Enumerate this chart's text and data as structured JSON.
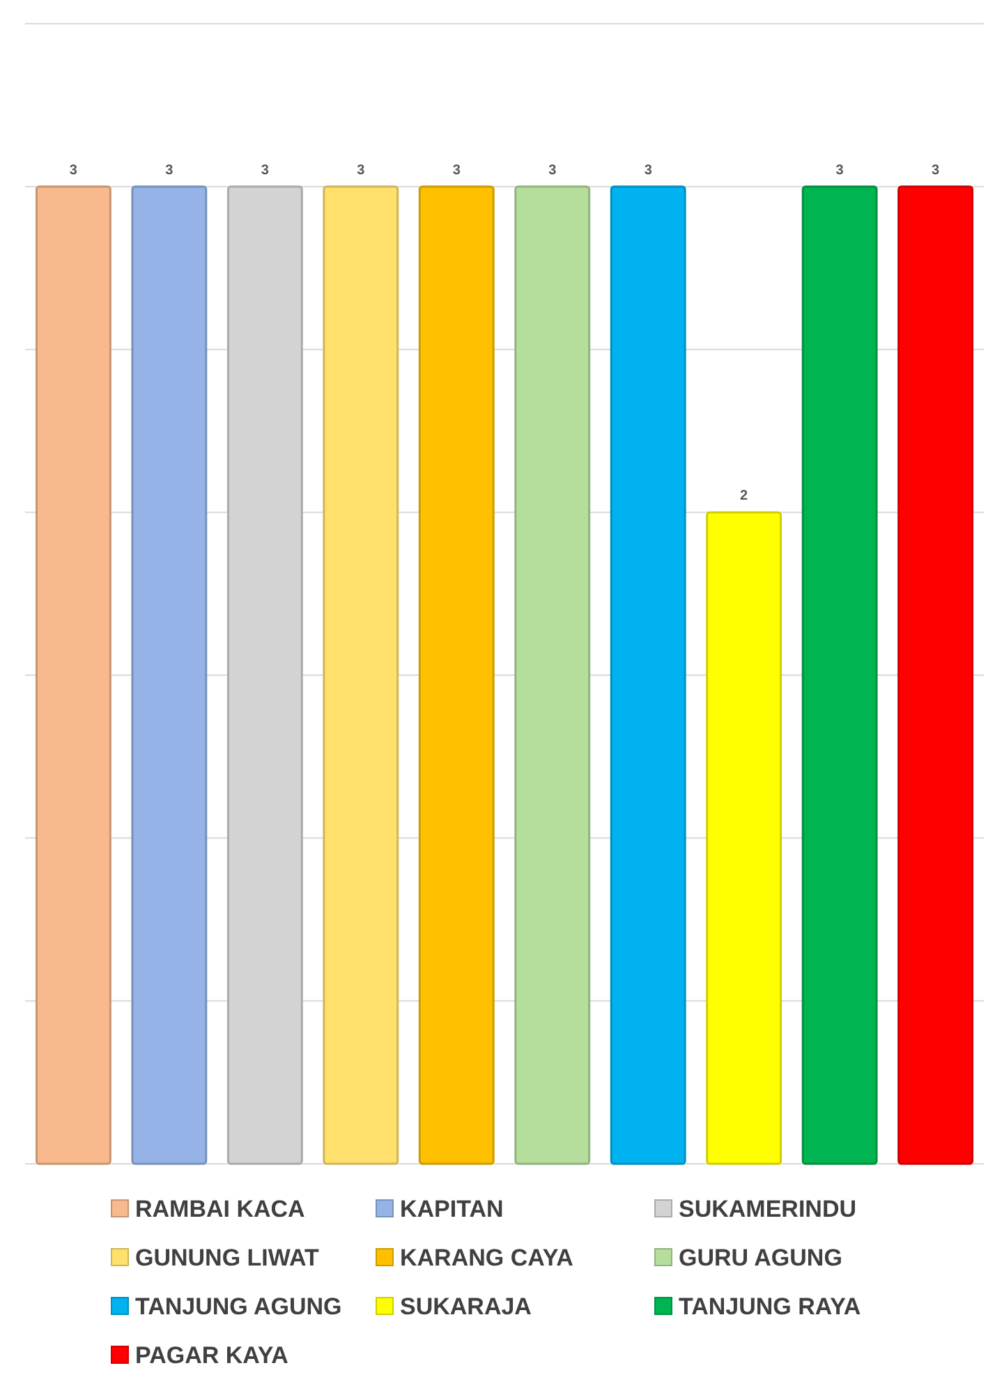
{
  "chart_data": {
    "type": "bar",
    "categories": [
      null,
      null,
      null,
      null,
      null,
      null,
      null,
      null,
      null,
      null
    ],
    "stacked": true,
    "series": [
      {
        "name": "RAMBAI KACA",
        "color": "#f8b98c",
        "values": [
          3,
          null,
          null,
          null,
          null,
          null,
          null,
          null,
          null,
          null
        ]
      },
      {
        "name": "KAPITAN",
        "color": "#95b3e6",
        "values": [
          null,
          3,
          null,
          null,
          null,
          null,
          null,
          null,
          null,
          null
        ]
      },
      {
        "name": "SUKAMERINDU",
        "color": "#d3d3d3",
        "values": [
          null,
          null,
          3,
          null,
          null,
          null,
          null,
          null,
          null,
          null
        ]
      },
      {
        "name": "GUNUNG LIWAT",
        "color": "#ffe06c",
        "values": [
          null,
          null,
          null,
          3,
          null,
          null,
          null,
          null,
          null,
          null
        ]
      },
      {
        "name": "KARANG CAYA",
        "color": "#ffc000",
        "values": [
          null,
          null,
          null,
          null,
          3,
          null,
          null,
          null,
          null,
          null
        ]
      },
      {
        "name": "GURU AGUNG",
        "color": "#b5de9c",
        "values": [
          null,
          null,
          null,
          null,
          null,
          3,
          null,
          null,
          null,
          null
        ]
      },
      {
        "name": "TANJUNG AGUNG",
        "color": "#00b2f0",
        "values": [
          null,
          null,
          null,
          null,
          null,
          null,
          3,
          null,
          null,
          null
        ]
      },
      {
        "name": "SUKARAJA",
        "color": "#ffff00",
        "values": [
          null,
          null,
          null,
          null,
          null,
          null,
          null,
          2,
          null,
          null
        ]
      },
      {
        "name": "TANJUNG RAYA",
        "color": "#00b451",
        "values": [
          null,
          null,
          null,
          null,
          null,
          null,
          null,
          null,
          3,
          null
        ]
      },
      {
        "name": "PAGAR KAYA",
        "color": "#ff0000",
        "values": [
          null,
          null,
          null,
          null,
          null,
          null,
          null,
          null,
          null,
          3
        ]
      }
    ],
    "ylim": [
      0,
      3.5
    ],
    "yticks": [
      {
        "value": 0,
        "label": null
      },
      {
        "value": 0.5,
        "label": null
      },
      {
        "value": 1,
        "label": null
      },
      {
        "value": 1.5,
        "label": null
      },
      {
        "value": 2,
        "label": null
      },
      {
        "value": 2.5,
        "label": null
      },
      {
        "value": 3,
        "label": null
      },
      {
        "value": 3.5,
        "label": null
      }
    ],
    "grid": "y",
    "data_labels": true,
    "legend": "bottom"
  }
}
